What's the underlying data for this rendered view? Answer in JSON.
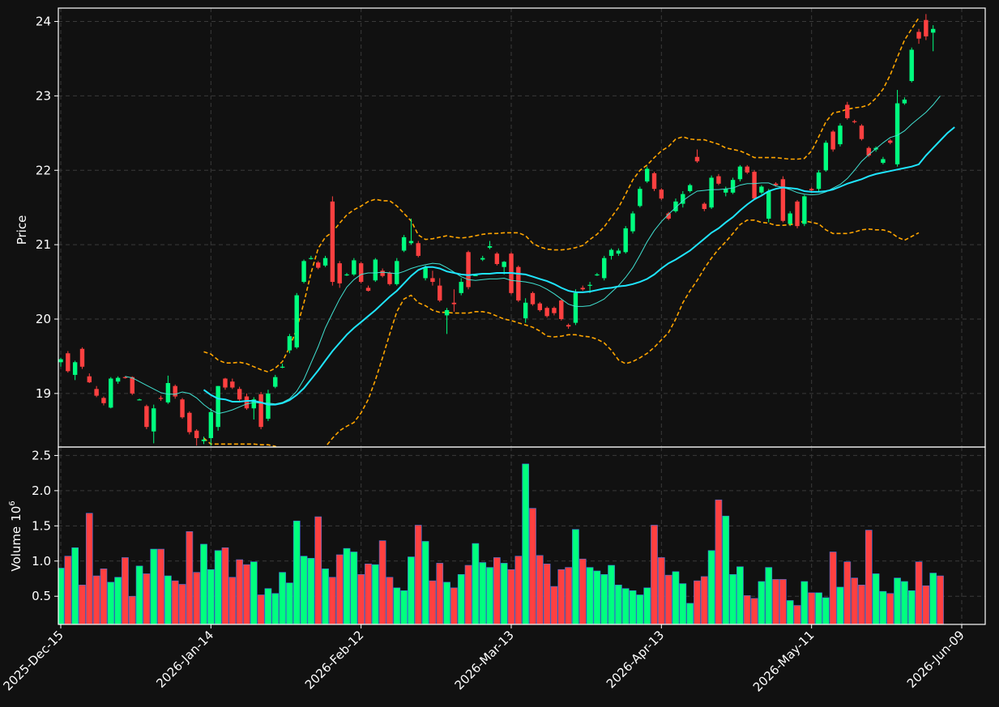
{
  "chart_data": {
    "type": "candlestick",
    "price_panel": {
      "ylabel": "Price",
      "yticks": [
        19,
        20,
        21,
        22,
        23,
        24
      ],
      "ylim": [
        18.28,
        24.18
      ],
      "grid": true
    },
    "volume_panel": {
      "ylabel": "Volume",
      "ylabel_exponent": "10",
      "ylabel_exponent_power": "6",
      "yticks": [
        "0.5",
        "1.0",
        "1.5",
        "2.0",
        "2.5"
      ],
      "ylim": [
        0.1,
        2.62
      ],
      "grid": true
    },
    "x_ticks": [
      {
        "index": 0,
        "label": "2025-Dec-15"
      },
      {
        "index": 21,
        "label": "2026-Jan-14"
      },
      {
        "index": 42,
        "label": "2026-Feb-12"
      },
      {
        "index": 63,
        "label": "2026-Mar-13"
      },
      {
        "index": 84,
        "label": "2026-Apr-13"
      },
      {
        "index": 105,
        "label": "2026-May-11"
      },
      {
        "index": 126,
        "label": "2026-Jun-09"
      }
    ],
    "colors": {
      "up": "#00ff7f",
      "down": "#ff4040",
      "ma_fast": "#40e0d0",
      "ma_slow": "#1fe5ff",
      "bands": "#ffa500",
      "background": "#111111",
      "grid": "#3a3a3a"
    },
    "candles": [
      [
        19.42,
        19.48,
        19.36,
        19.46
      ],
      [
        19.54,
        19.57,
        19.28,
        19.3
      ],
      [
        19.25,
        19.44,
        19.18,
        19.42
      ],
      [
        19.6,
        19.62,
        19.33,
        19.36
      ],
      [
        19.23,
        19.27,
        19.14,
        19.15
      ],
      [
        19.06,
        19.1,
        18.95,
        18.97
      ],
      [
        18.94,
        18.96,
        18.84,
        18.87
      ],
      [
        18.81,
        19.22,
        18.8,
        19.2
      ],
      [
        19.16,
        19.23,
        19.13,
        19.21
      ],
      [
        19.22,
        19.23,
        19.2,
        19.21
      ],
      [
        19.22,
        19.23,
        18.98,
        19.0
      ],
      [
        18.92,
        18.93,
        18.91,
        18.92
      ],
      [
        18.83,
        18.85,
        18.52,
        18.55
      ],
      [
        18.49,
        18.85,
        18.33,
        18.8
      ],
      [
        18.94,
        18.97,
        18.9,
        18.93
      ],
      [
        18.88,
        19.24,
        18.86,
        19.14
      ],
      [
        19.1,
        19.12,
        18.93,
        18.96
      ],
      [
        18.92,
        18.94,
        18.66,
        18.68
      ],
      [
        18.74,
        18.76,
        18.45,
        18.48
      ],
      [
        18.5,
        18.52,
        18.3,
        18.4
      ],
      [
        18.36,
        18.42,
        18.32,
        18.38
      ],
      [
        18.4,
        18.8,
        18.3,
        18.75
      ],
      [
        18.55,
        19.1,
        18.5,
        19.1
      ],
      [
        19.2,
        19.21,
        19.05,
        19.08
      ],
      [
        19.16,
        19.2,
        19.06,
        19.08
      ],
      [
        19.06,
        19.09,
        18.9,
        18.92
      ],
      [
        18.96,
        19.0,
        18.78,
        18.8
      ],
      [
        18.8,
        18.95,
        18.65,
        18.92
      ],
      [
        18.99,
        19.02,
        18.52,
        18.55
      ],
      [
        18.66,
        19.05,
        18.63,
        19.0
      ],
      [
        19.09,
        19.25,
        19.07,
        19.22
      ],
      [
        19.35,
        19.4,
        19.34,
        19.36
      ],
      [
        19.58,
        19.8,
        19.54,
        19.77
      ],
      [
        19.62,
        20.35,
        19.6,
        20.32
      ],
      [
        20.5,
        20.8,
        20.48,
        20.78
      ],
      [
        20.82,
        20.85,
        20.8,
        20.82
      ],
      [
        20.76,
        20.78,
        20.67,
        20.69
      ],
      [
        20.72,
        20.85,
        20.7,
        20.82
      ],
      [
        21.58,
        21.65,
        20.45,
        20.5
      ],
      [
        20.75,
        20.78,
        20.42,
        20.48
      ],
      [
        20.6,
        20.62,
        20.58,
        20.6
      ],
      [
        20.6,
        20.82,
        20.58,
        20.79
      ],
      [
        20.75,
        20.77,
        20.48,
        20.5
      ],
      [
        20.42,
        20.45,
        20.37,
        20.38
      ],
      [
        20.52,
        20.82,
        20.5,
        20.8
      ],
      [
        20.65,
        20.68,
        20.56,
        20.58
      ],
      [
        20.62,
        20.64,
        20.45,
        20.47
      ],
      [
        20.47,
        20.82,
        20.45,
        20.78
      ],
      [
        20.92,
        21.13,
        20.9,
        21.1
      ],
      [
        21.02,
        21.35,
        21.0,
        21.05
      ],
      [
        21.02,
        21.05,
        20.83,
        20.85
      ],
      [
        20.55,
        20.72,
        20.52,
        20.7
      ],
      [
        20.55,
        20.65,
        20.45,
        20.5
      ],
      [
        20.45,
        20.55,
        20.23,
        20.25
      ],
      [
        20.05,
        20.15,
        19.8,
        20.12
      ],
      [
        20.22,
        20.4,
        20.1,
        20.2
      ],
      [
        20.35,
        20.55,
        20.32,
        20.5
      ],
      [
        20.9,
        20.92,
        20.4,
        20.43
      ],
      [
        20.59,
        20.6,
        20.58,
        20.59
      ],
      [
        20.8,
        20.85,
        20.78,
        20.82
      ],
      [
        20.96,
        21.05,
        20.94,
        20.98
      ],
      [
        20.88,
        20.9,
        20.72,
        20.74
      ],
      [
        20.7,
        20.78,
        20.6,
        20.77
      ],
      [
        20.88,
        20.9,
        20.33,
        20.35
      ],
      [
        20.7,
        20.72,
        20.23,
        20.25
      ],
      [
        20.01,
        20.28,
        19.95,
        20.22
      ],
      [
        20.35,
        20.37,
        20.18,
        20.2
      ],
      [
        20.21,
        20.23,
        20.1,
        20.12
      ],
      [
        20.15,
        20.17,
        20.02,
        20.04
      ],
      [
        20.15,
        20.17,
        20.05,
        20.08
      ],
      [
        20.25,
        20.27,
        19.98,
        20.0
      ],
      [
        19.92,
        19.94,
        19.87,
        19.9
      ],
      [
        19.95,
        20.4,
        19.92,
        20.35
      ],
      [
        20.42,
        20.45,
        20.38,
        20.4
      ],
      [
        20.45,
        20.5,
        20.35,
        20.46
      ],
      [
        20.6,
        20.62,
        20.58,
        20.6
      ],
      [
        20.55,
        20.85,
        20.52,
        20.82
      ],
      [
        20.85,
        20.95,
        20.8,
        20.93
      ],
      [
        20.88,
        20.95,
        20.85,
        20.92
      ],
      [
        20.9,
        21.25,
        20.88,
        21.22
      ],
      [
        21.18,
        21.45,
        21.15,
        21.42
      ],
      [
        21.52,
        21.78,
        21.5,
        21.75
      ],
      [
        21.85,
        22.05,
        21.83,
        22.02
      ],
      [
        21.96,
        21.98,
        21.72,
        21.75
      ],
      [
        21.74,
        21.76,
        21.6,
        21.62
      ],
      [
        21.42,
        21.44,
        21.33,
        21.35
      ],
      [
        21.45,
        21.62,
        21.43,
        21.58
      ],
      [
        21.55,
        21.72,
        21.5,
        21.68
      ],
      [
        21.72,
        21.82,
        21.7,
        21.8
      ],
      [
        22.18,
        22.28,
        22.1,
        22.12
      ],
      [
        21.55,
        21.57,
        21.45,
        21.48
      ],
      [
        21.5,
        21.93,
        21.48,
        21.9
      ],
      [
        21.92,
        21.95,
        21.8,
        21.82
      ],
      [
        21.7,
        21.78,
        21.65,
        21.75
      ],
      [
        21.7,
        21.9,
        21.68,
        21.87
      ],
      [
        21.88,
        22.07,
        21.85,
        22.05
      ],
      [
        22.05,
        22.07,
        21.95,
        21.97
      ],
      [
        21.98,
        22.0,
        21.6,
        21.62
      ],
      [
        21.7,
        21.8,
        21.68,
        21.78
      ],
      [
        21.35,
        21.75,
        21.3,
        21.72
      ],
      [
        21.82,
        21.84,
        21.78,
        21.8
      ],
      [
        21.88,
        21.92,
        21.3,
        21.32
      ],
      [
        21.28,
        21.45,
        21.25,
        21.42
      ],
      [
        21.58,
        21.6,
        21.22,
        21.25
      ],
      [
        21.28,
        21.67,
        21.25,
        21.65
      ],
      [
        21.75,
        21.77,
        21.7,
        21.73
      ],
      [
        21.75,
        22.0,
        21.72,
        21.97
      ],
      [
        22.0,
        22.4,
        21.98,
        22.37
      ],
      [
        22.52,
        22.54,
        22.25,
        22.28
      ],
      [
        22.35,
        22.63,
        22.32,
        22.6
      ],
      [
        22.88,
        22.92,
        22.68,
        22.7
      ],
      [
        22.66,
        22.68,
        22.63,
        22.65
      ],
      [
        22.6,
        22.62,
        22.4,
        22.42
      ],
      [
        22.3,
        22.32,
        22.18,
        22.2
      ],
      [
        22.28,
        22.32,
        22.25,
        22.3
      ],
      [
        22.1,
        22.18,
        22.08,
        22.15
      ],
      [
        22.4,
        22.42,
        22.35,
        22.37
      ],
      [
        22.08,
        23.08,
        22.05,
        22.9
      ],
      [
        22.9,
        22.98,
        22.88,
        22.95
      ],
      [
        23.2,
        23.65,
        23.18,
        23.62
      ],
      [
        23.86,
        23.9,
        23.7,
        23.77
      ],
      [
        24.02,
        24.1,
        23.75,
        23.8
      ],
      [
        23.85,
        23.95,
        23.6,
        23.9
      ]
    ],
    "volumes": [
      0.9,
      1.07,
      1.19,
      0.66,
      1.68,
      0.79,
      0.89,
      0.7,
      0.77,
      1.05,
      0.5,
      0.93,
      0.82,
      1.17,
      1.17,
      0.79,
      0.72,
      0.67,
      1.42,
      0.84,
      1.24,
      0.88,
      1.15,
      1.19,
      0.77,
      1.02,
      0.95,
      0.99,
      0.52,
      0.61,
      0.54,
      0.84,
      0.69,
      1.57,
      1.07,
      1.04,
      1.63,
      0.89,
      0.77,
      1.09,
      1.18,
      1.13,
      0.81,
      0.96,
      0.95,
      1.29,
      0.77,
      0.62,
      0.58,
      1.06,
      1.51,
      1.28,
      0.72,
      0.97,
      0.7,
      0.62,
      0.81,
      0.94,
      1.25,
      0.98,
      0.91,
      1.05,
      0.97,
      0.88,
      1.07,
      2.38,
      1.75,
      1.08,
      0.96,
      0.64,
      0.88,
      0.91,
      1.45,
      1.03,
      0.91,
      0.86,
      0.81,
      0.94,
      0.66,
      0.61,
      0.58,
      0.52,
      0.62,
      1.51,
      1.05,
      0.8,
      0.85,
      0.68,
      0.4,
      0.72,
      0.78,
      1.15,
      1.87,
      1.64,
      0.81,
      0.92,
      0.51,
      0.47,
      0.71,
      0.91,
      0.74,
      0.74,
      0.44,
      0.37,
      0.71,
      0.55,
      0.55,
      0.48,
      1.13,
      0.63,
      0.99,
      0.76,
      0.66,
      1.44,
      0.82,
      0.57,
      0.54,
      0.76,
      0.71,
      0.58,
      0.99,
      0.65,
      0.83,
      0.79
    ],
    "ma_fast": [
      null,
      null,
      null,
      null,
      null,
      null,
      null,
      null,
      null,
      19.23,
      19.21,
      19.16,
      19.11,
      19.06,
      19.01,
      18.99,
      18.99,
      19.02,
      19.0,
      18.94,
      18.85,
      18.78,
      18.73,
      18.75,
      18.78,
      18.82,
      18.86,
      18.88,
      18.87,
      18.87,
      18.86,
      18.88,
      18.93,
      19.03,
      19.19,
      19.41,
      19.63,
      19.88,
      20.08,
      20.27,
      20.43,
      20.53,
      20.6,
      20.62,
      20.62,
      20.63,
      20.62,
      20.61,
      20.64,
      20.68,
      20.71,
      20.73,
      20.75,
      20.74,
      20.69,
      20.63,
      20.57,
      20.53,
      20.52,
      20.53,
      20.54,
      20.54,
      20.55,
      20.52,
      20.51,
      20.5,
      20.48,
      20.45,
      20.4,
      20.34,
      20.27,
      20.2,
      20.17,
      20.17,
      20.18,
      20.22,
      20.27,
      20.36,
      20.45,
      20.56,
      20.69,
      20.86,
      21.04,
      21.19,
      21.31,
      21.41,
      21.5,
      21.59,
      21.66,
      21.72,
      21.73,
      21.74,
      21.74,
      21.75,
      21.76,
      21.8,
      21.82,
      21.82,
      21.83,
      21.83,
      21.79,
      21.77,
      21.74,
      21.7,
      21.68,
      21.67,
      21.68,
      21.71,
      21.76,
      21.81,
      21.89,
      22.0,
      22.12,
      22.21,
      22.29,
      22.37,
      22.44,
      22.47,
      22.53,
      22.62,
      22.7,
      22.78,
      22.88,
      23.0
    ],
    "ma_slow": [
      null,
      null,
      null,
      null,
      null,
      null,
      null,
      null,
      null,
      null,
      null,
      null,
      null,
      null,
      null,
      null,
      null,
      null,
      null,
      null,
      19.05,
      18.98,
      18.93,
      18.92,
      18.89,
      18.89,
      18.9,
      18.9,
      18.88,
      18.85,
      18.85,
      18.87,
      18.91,
      18.98,
      19.07,
      19.19,
      19.31,
      19.44,
      19.57,
      19.68,
      19.79,
      19.88,
      19.96,
      20.04,
      20.12,
      20.21,
      20.3,
      20.38,
      20.48,
      20.58,
      20.66,
      20.7,
      20.7,
      20.68,
      20.64,
      20.62,
      20.6,
      20.59,
      20.6,
      20.61,
      20.61,
      20.62,
      20.62,
      20.62,
      20.61,
      20.6,
      20.57,
      20.54,
      20.51,
      20.47,
      20.42,
      20.38,
      20.36,
      20.36,
      20.37,
      20.39,
      20.41,
      20.42,
      20.44,
      20.45,
      20.47,
      20.5,
      20.54,
      20.6,
      20.68,
      20.75,
      20.8,
      20.86,
      20.92,
      21.0,
      21.08,
      21.16,
      21.22,
      21.3,
      21.37,
      21.46,
      21.54,
      21.61,
      21.66,
      21.72,
      21.75,
      21.77,
      21.76,
      21.75,
      21.72,
      21.71,
      21.71,
      21.72,
      21.74,
      21.78,
      21.82,
      21.85,
      21.88,
      21.92,
      21.95,
      21.97,
      21.99,
      22.01,
      22.03,
      22.05,
      22.08,
      22.2,
      22.3,
      22.4,
      22.5,
      22.58
    ],
    "band_upper": [
      null,
      null,
      null,
      null,
      null,
      null,
      null,
      null,
      null,
      null,
      null,
      null,
      null,
      null,
      null,
      null,
      null,
      null,
      null,
      null,
      19.56,
      19.53,
      19.45,
      19.41,
      19.41,
      19.42,
      19.4,
      19.36,
      19.32,
      19.29,
      19.34,
      19.43,
      19.62,
      19.87,
      20.22,
      20.62,
      20.95,
      21.1,
      21.17,
      21.29,
      21.4,
      21.47,
      21.52,
      21.58,
      21.61,
      21.59,
      21.59,
      21.52,
      21.42,
      21.32,
      21.13,
      21.07,
      21.08,
      21.1,
      21.12,
      21.1,
      21.09,
      21.1,
      21.12,
      21.14,
      21.15,
      21.15,
      21.16,
      21.16,
      21.16,
      21.12,
      21.02,
      20.97,
      20.94,
      20.93,
      20.93,
      20.94,
      20.96,
      20.99,
      21.07,
      21.14,
      21.24,
      21.37,
      21.5,
      21.68,
      21.87,
      22.0,
      22.07,
      22.17,
      22.26,
      22.32,
      22.42,
      22.45,
      22.42,
      22.41,
      22.41,
      22.38,
      22.35,
      22.3,
      22.28,
      22.26,
      22.22,
      22.17,
      22.17,
      22.17,
      22.17,
      22.16,
      22.15,
      22.15,
      22.16,
      22.26,
      22.45,
      22.65,
      22.77,
      22.79,
      22.82,
      22.84,
      22.85,
      22.88,
      22.97,
      23.09,
      23.28,
      23.52,
      23.75,
      23.9,
      24.05
    ],
    "band_lower": [
      null,
      null,
      null,
      null,
      null,
      null,
      null,
      null,
      null,
      null,
      null,
      null,
      null,
      null,
      null,
      null,
      null,
      null,
      null,
      null,
      18.4,
      18.32,
      18.32,
      18.32,
      18.32,
      18.32,
      18.32,
      18.32,
      18.31,
      18.31,
      18.29,
      18.2,
      18.05,
      17.95,
      17.98,
      18.04,
      18.14,
      18.28,
      18.4,
      18.5,
      18.56,
      18.61,
      18.74,
      18.92,
      19.18,
      19.48,
      19.8,
      20.1,
      20.27,
      20.32,
      20.22,
      20.18,
      20.12,
      20.09,
      20.09,
      20.08,
      20.08,
      20.08,
      20.1,
      20.1,
      20.08,
      20.04,
      20.0,
      19.98,
      19.95,
      19.92,
      19.89,
      19.84,
      19.77,
      19.76,
      19.77,
      19.79,
      19.79,
      19.77,
      19.76,
      19.73,
      19.68,
      19.58,
      19.45,
      19.4,
      19.43,
      19.48,
      19.54,
      19.62,
      19.72,
      19.82,
      20.0,
      20.22,
      20.38,
      20.52,
      20.68,
      20.82,
      20.94,
      21.04,
      21.15,
      21.27,
      21.33,
      21.33,
      21.3,
      21.29,
      21.26,
      21.26,
      21.27,
      21.28,
      21.32,
      21.3,
      21.28,
      21.2,
      21.15,
      21.15,
      21.15,
      21.17,
      21.2,
      21.21,
      21.2,
      21.2,
      21.17,
      21.1,
      21.06,
      21.11,
      21.16
    ]
  }
}
